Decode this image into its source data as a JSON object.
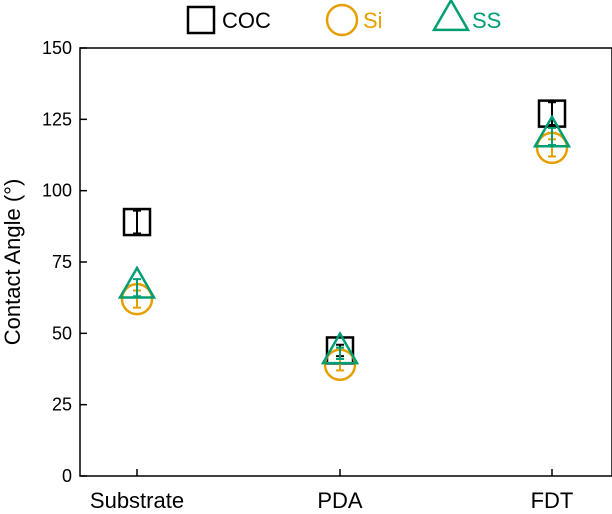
{
  "chart_data": {
    "type": "scatter",
    "title": "",
    "xlabel": "",
    "ylabel": "Contact Angle (°)",
    "categories": [
      "Substrate",
      "PDA",
      "FDT"
    ],
    "ylim": [
      0,
      150
    ],
    "yticks": [
      0,
      25,
      50,
      75,
      100,
      125,
      150
    ],
    "grid": false,
    "legend_position": "top",
    "series": [
      {
        "name": "COC",
        "marker": "square",
        "color": "#000000",
        "values": [
          89,
          44,
          127
        ],
        "errors": [
          4,
          2,
          4
        ]
      },
      {
        "name": "Si",
        "marker": "circle",
        "color": "#E69F00",
        "values": [
          62,
          39,
          115
        ],
        "errors": [
          3,
          2,
          3
        ]
      },
      {
        "name": "SS",
        "marker": "triangle",
        "color": "#009E73",
        "values": [
          66,
          43,
          119
        ],
        "errors": [
          3,
          2,
          3
        ]
      }
    ]
  }
}
